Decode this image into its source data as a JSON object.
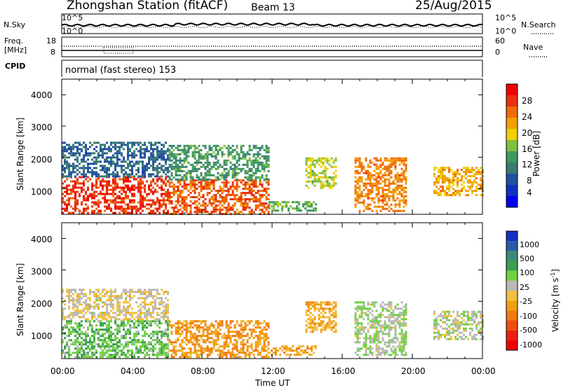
{
  "header": {
    "title": "Zhongshan Station (fitACF)",
    "beam": "Beam 13",
    "date": "25/Aug/2015"
  },
  "top_panels": {
    "nsky_label": "N.Sky",
    "nsearch_label": "N.Search",
    "nsky_left_ticks": [
      "10^5",
      "10^0"
    ],
    "nsky_right_ticks": [
      "10^5",
      "10^0"
    ],
    "freq_label_1": "Freq.",
    "freq_label_2": "[MHz]",
    "freq_ticks": [
      "18",
      "8"
    ],
    "nave_label": "Nave",
    "nave_ticks": [
      "60",
      "0"
    ],
    "cpid_label": "CPID",
    "cpid_text": "normal (fast stereo) 153"
  },
  "x_axis": {
    "label": "Time UT",
    "ticks": [
      "00:00",
      "04:00",
      "08:00",
      "12:00",
      "16:00",
      "20:00",
      "00:00"
    ]
  },
  "power_panel": {
    "ylabel": "Slant Range [km]",
    "yticks": [
      "4000",
      "3000",
      "2000",
      "1000"
    ],
    "colorbar_label": "Power [dB]",
    "colorbar_ticks": [
      "28",
      "24",
      "20",
      "16",
      "12",
      "8",
      "4"
    ],
    "colors": [
      "#f00000",
      "#e83010",
      "#f06a0a",
      "#f0a000",
      "#f0d000",
      "#80c040",
      "#3c9a60",
      "#3a7a70",
      "#2050a0",
      "#1030c0",
      "#0000f0"
    ]
  },
  "velocity_panel": {
    "ylabel": "Slant Range [km]",
    "yticks": [
      "4000",
      "3000",
      "2000",
      "1000"
    ],
    "colorbar_label": "Velocity [m s",
    "colorbar_label_sup": "-1",
    "colorbar_label_end": "]",
    "colorbar_ticks": [
      "1000",
      "500",
      "100",
      "25",
      "-25",
      "-100",
      "-500",
      "-1000"
    ],
    "colors": [
      "#1530c0",
      "#2a5aa8",
      "#3a8a78",
      "#3aa050",
      "#70d040",
      "#b8b8b8",
      "#f0c040",
      "#f0a010",
      "#f07a10",
      "#f04a10",
      "#e82010",
      "#f00000"
    ]
  },
  "chart_data": [
    {
      "type": "heatmap",
      "title": "Zhongshan Station (fitACF)",
      "subtitle": "Beam 13",
      "xlabel": "Time UT",
      "ylabel": "Slant Range [km]",
      "xlim": [
        0,
        24
      ],
      "ylim": [
        180,
        4500
      ],
      "colorbar": "Power [dB]",
      "clim": [
        0,
        30
      ],
      "regions": [
        {
          "x": [
            0.0,
            6.1
          ],
          "y": [
            200,
            1400
          ],
          "value": 26
        },
        {
          "x": [
            0.0,
            6.1
          ],
          "y": [
            1400,
            2500
          ],
          "value": 8
        },
        {
          "x": [
            6.1,
            11.8
          ],
          "y": [
            200,
            1300
          ],
          "value": 24
        },
        {
          "x": [
            6.1,
            11.8
          ],
          "y": [
            1300,
            2400
          ],
          "value": 12
        },
        {
          "x": [
            11.8,
            14.5
          ],
          "y": [
            300,
            600
          ],
          "value": 14
        },
        {
          "x": [
            13.9,
            15.7
          ],
          "y": [
            1000,
            2000
          ],
          "value": 16
        },
        {
          "x": [
            16.7,
            19.6
          ],
          "y": [
            300,
            2000
          ],
          "value": 22
        },
        {
          "x": [
            21.2,
            24.0
          ],
          "y": [
            800,
            1700
          ],
          "value": 20
        }
      ]
    },
    {
      "type": "heatmap",
      "title": "Zhongshan Station (fitACF)",
      "subtitle": "Beam 13",
      "xlabel": "Time UT",
      "ylabel": "Slant Range [km]",
      "xlim": [
        0,
        24
      ],
      "ylim": [
        180,
        4500
      ],
      "colorbar": "Velocity [m s-1]",
      "clim": [
        -1000,
        1000
      ],
      "regions": [
        {
          "x": [
            0.0,
            6.1
          ],
          "y": [
            200,
            1400
          ],
          "value": 300
        },
        {
          "x": [
            0.0,
            6.1
          ],
          "y": [
            1400,
            2400
          ],
          "value": 0
        },
        {
          "x": [
            6.1,
            11.8
          ],
          "y": [
            200,
            1400
          ],
          "value": -300
        },
        {
          "x": [
            11.8,
            14.5
          ],
          "y": [
            300,
            600
          ],
          "value": -200
        },
        {
          "x": [
            13.9,
            15.7
          ],
          "y": [
            1000,
            2000
          ],
          "value": -200
        },
        {
          "x": [
            16.7,
            19.6
          ],
          "y": [
            300,
            2000
          ],
          "value": 150
        },
        {
          "x": [
            21.2,
            24.0
          ],
          "y": [
            800,
            1700
          ],
          "value": 100
        }
      ]
    }
  ]
}
